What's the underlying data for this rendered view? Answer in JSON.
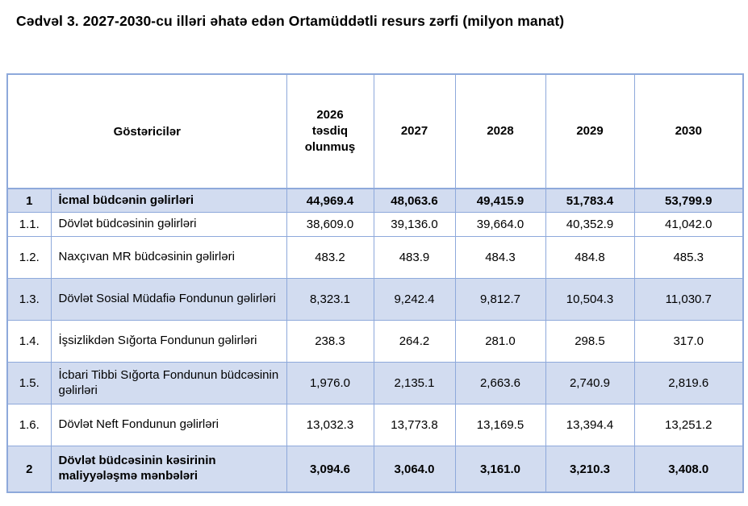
{
  "title": "Cədvəl 3. 2027-2030-cu illəri əhatə edən Ortamüddətli resurs zərfi (milyon manat)",
  "colors": {
    "border": "#8EA9DB",
    "row_shade": "#D2DCF0",
    "text": "#000000"
  },
  "table": {
    "header": {
      "indicator_label": "Göstəricilər",
      "year_columns": [
        "2026\ntəsdiq\nolunmuş",
        "2027",
        "2028",
        "2029",
        "2030"
      ]
    },
    "rows": [
      {
        "num": "1",
        "label": "İcmal büdcənin gəlirləri",
        "values": [
          "44,969.4",
          "48,063.6",
          "49,415.9",
          "51,783.4",
          "53,799.9"
        ],
        "bold": true,
        "shaded": true,
        "size": "h-sm"
      },
      {
        "num": "1.1.",
        "label": "Dövlət büdcəsinin gəlirləri",
        "values": [
          "38,609.0",
          "39,136.0",
          "39,664.0",
          "40,352.9",
          "41,042.0"
        ],
        "bold": false,
        "shaded": false,
        "size": "h-md"
      },
      {
        "num": "1.2.",
        "label": "Naxçıvan MR büdcəsinin gəlirləri",
        "values": [
          "483.2",
          "483.9",
          "484.3",
          "484.8",
          "485.3"
        ],
        "bold": false,
        "shaded": false,
        "size": "h-2l"
      },
      {
        "num": "1.3.",
        "label": "Dövlət Sosial Müdafiə Fondunun gəlirləri",
        "values": [
          "8,323.1",
          "9,242.4",
          "9,812.7",
          "10,504.3",
          "11,030.7"
        ],
        "bold": false,
        "shaded": true,
        "size": "h-2l"
      },
      {
        "num": "1.4.",
        "label": "İşsizlikdən Sığorta Fondunun gəlirləri",
        "values": [
          "238.3",
          "264.2",
          "281.0",
          "298.5",
          "317.0"
        ],
        "bold": false,
        "shaded": false,
        "size": "h-2l"
      },
      {
        "num": "1.5.",
        "label": "İcbari Tibbi Sığorta Fondunun büdcəsinin gəlirləri",
        "values": [
          "1,976.0",
          "2,135.1",
          "2,663.6",
          "2,740.9",
          "2,819.6"
        ],
        "bold": false,
        "shaded": true,
        "size": "h-2l"
      },
      {
        "num": "1.6.",
        "label": "Dövlət Neft Fondunun gəlirləri",
        "values": [
          "13,032.3",
          "13,773.8",
          "13,169.5",
          "13,394.4",
          "13,251.2"
        ],
        "bold": false,
        "shaded": false,
        "size": "h-2l"
      },
      {
        "num": "2",
        "label": "Dövlət büdcəsinin kəsirinin maliyyələşmə mənbələri",
        "values": [
          "3,094.6",
          "3,064.0",
          "3,161.0",
          "3,210.3",
          "3,408.0"
        ],
        "bold": true,
        "shaded": true,
        "size": "h-last"
      }
    ]
  }
}
